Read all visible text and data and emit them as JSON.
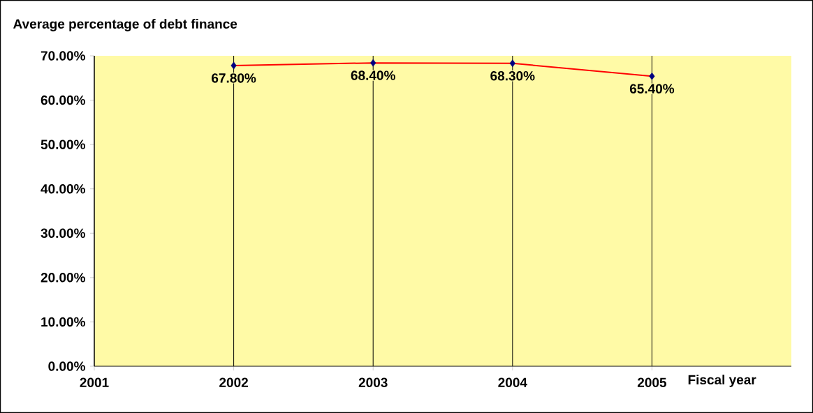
{
  "chart_data": {
    "type": "line",
    "ylabel": "Average percentage of debt finance",
    "xlabel": "Fiscal year",
    "x": [
      2002,
      2003,
      2004,
      2005
    ],
    "series": [
      {
        "color": "#ff0000",
        "colors": [
          "#000080",
          "#000080",
          "#000080",
          "#000080"
        ],
        "values": [
          67.8,
          68.4,
          68.3,
          65.4
        ],
        "value_labels": [
          "67.80%",
          "68.40%",
          "68.30%",
          "65.40%"
        ]
      }
    ],
    "marker": "diamond",
    "line_style": "solid",
    "xlim": [
      2001,
      2006
    ],
    "xticks": [
      2001,
      2002,
      2003,
      2004,
      2005
    ],
    "ylim": [
      0,
      70
    ],
    "yticks": [
      {
        "value": 0,
        "label": "0.00%"
      },
      {
        "value": 10,
        "label": "10.00%"
      },
      {
        "value": 20,
        "label": "20.00%"
      },
      {
        "value": 30,
        "label": "30.00%"
      },
      {
        "value": 40,
        "label": "40.00%"
      },
      {
        "value": 50,
        "label": "50.00%"
      },
      {
        "value": 60,
        "label": "60.00%"
      },
      {
        "value": 70,
        "label": "70.00%"
      }
    ],
    "grid": "x"
  }
}
